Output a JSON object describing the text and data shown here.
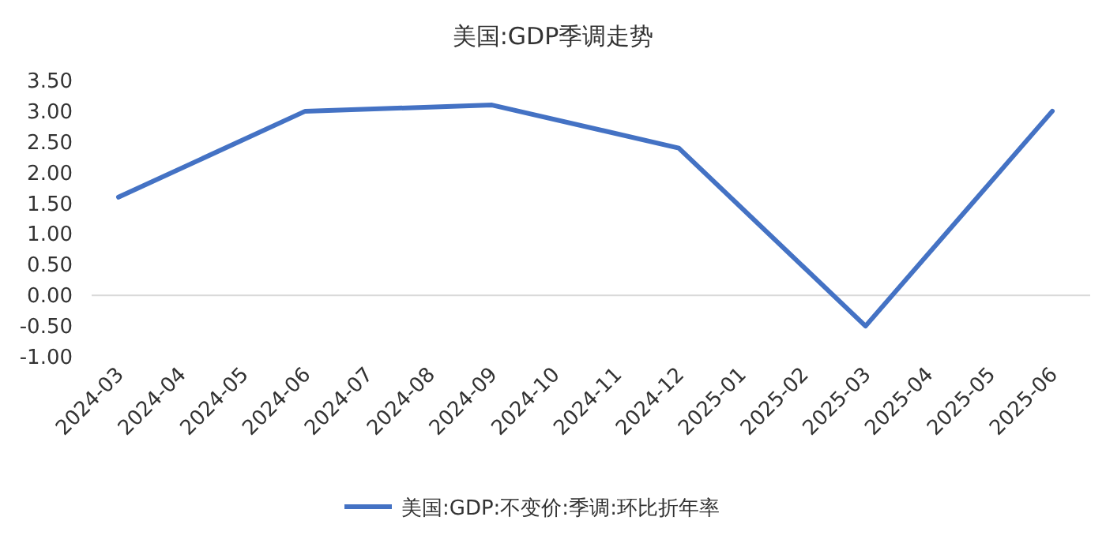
{
  "chart_data": {
    "type": "line",
    "title": "美国:GDP季调走势",
    "xlim": [
      "2024-03",
      "2025-06"
    ],
    "xticks": [
      "2024-03",
      "2024-04",
      "2024-05",
      "2024-06",
      "2024-07",
      "2024-08",
      "2024-09",
      "2024-10",
      "2024-11",
      "2024-12",
      "2025-01",
      "2025-02",
      "2025-03",
      "2025-04",
      "2025-05",
      "2025-06"
    ],
    "ylim": [
      -1,
      3.5
    ],
    "yticks": [
      {
        "value": 3.5,
        "label": "3.50"
      },
      {
        "value": 3,
        "label": "3.00"
      },
      {
        "value": 2.5,
        "label": "2.50"
      },
      {
        "value": 2,
        "label": "2.00"
      },
      {
        "value": 1.5,
        "label": "1.50"
      },
      {
        "value": 1,
        "label": "1.00"
      },
      {
        "value": 0.5,
        "label": "0.50"
      },
      {
        "value": 0,
        "label": "0.00"
      },
      {
        "value": -0.5,
        "label": "-0.50"
      },
      {
        "value": -1,
        "label": "-1.00"
      }
    ],
    "legend": "bottom",
    "marker": "none",
    "line_style": "solid",
    "series": [
      {
        "name": "美国:GDP:不变价:季调:环比折年率",
        "color": "#4472c4",
        "x": [
          "2024-03",
          "2024-06",
          "2024-09",
          "2024-12",
          "2025-03",
          "2025-06"
        ],
        "values": [
          1.6,
          3.0,
          3.1,
          2.4,
          -0.5,
          3.0
        ]
      }
    ]
  }
}
